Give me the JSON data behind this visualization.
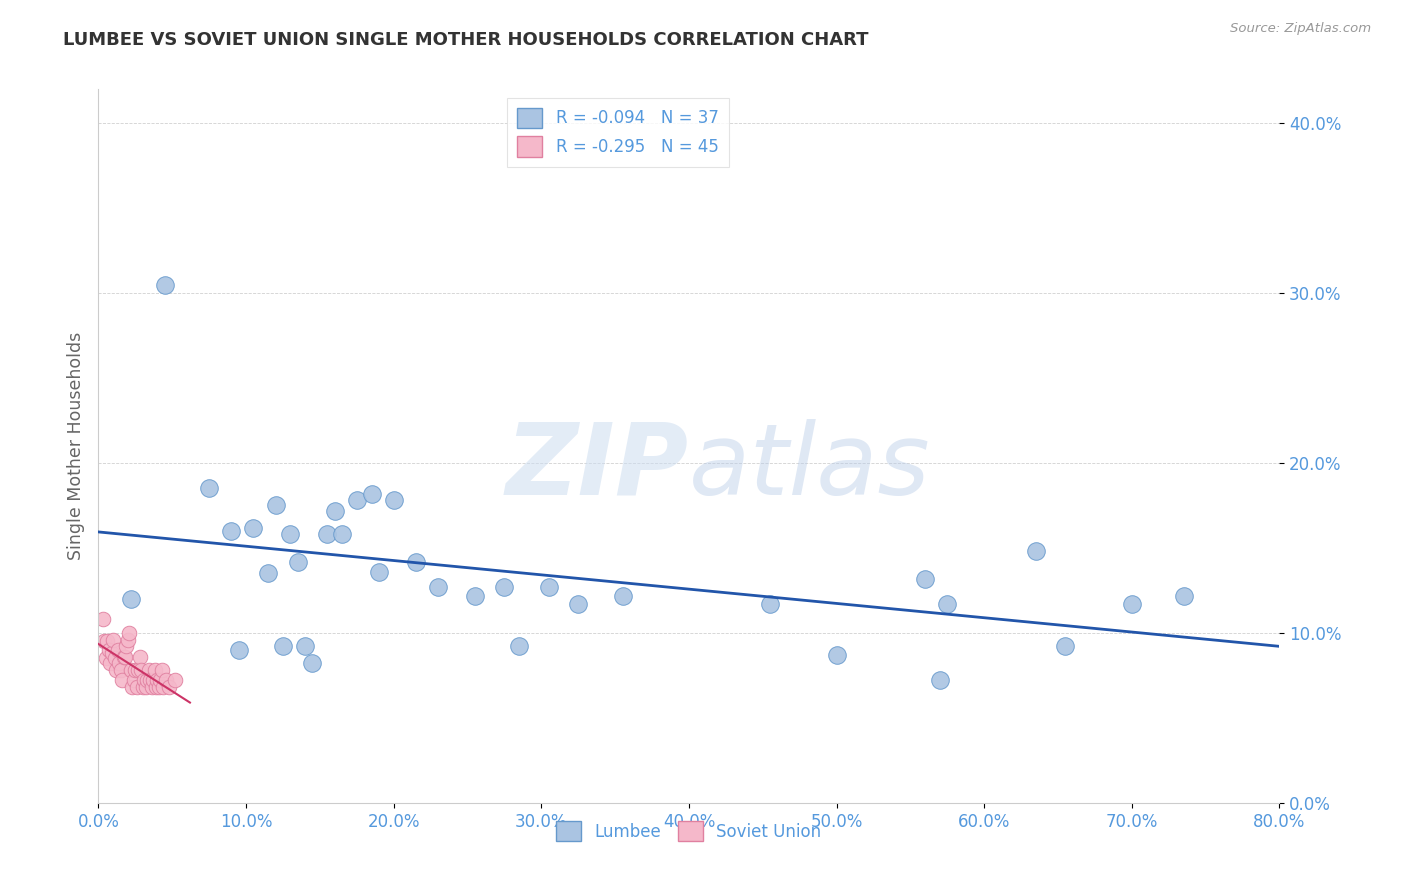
{
  "title": "LUMBEE VS SOVIET UNION SINGLE MOTHER HOUSEHOLDS CORRELATION CHART",
  "source": "Source: ZipAtlas.com",
  "xlim": [
    0.0,
    0.8
  ],
  "ylim": [
    0.0,
    0.42
  ],
  "yticks": [
    0.0,
    0.1,
    0.2,
    0.3,
    0.4
  ],
  "xticks": [
    0.0,
    0.1,
    0.2,
    0.3,
    0.4,
    0.5,
    0.6,
    0.7,
    0.8
  ],
  "lumbee_color": "#aac4e2",
  "soviet_color": "#f5b8ca",
  "lumbee_edge": "#6699cc",
  "soviet_edge": "#e080a0",
  "regression_lumbee_color": "#2255aa",
  "regression_soviet_color": "#cc3366",
  "tick_color": "#5599dd",
  "lumbee_R": -0.094,
  "lumbee_N": 37,
  "soviet_R": -0.295,
  "soviet_N": 45,
  "watermark_zip": "ZIP",
  "watermark_atlas": "atlas",
  "lumbee_x": [
    0.022,
    0.045,
    0.075,
    0.09,
    0.095,
    0.105,
    0.115,
    0.12,
    0.125,
    0.13,
    0.135,
    0.14,
    0.145,
    0.155,
    0.16,
    0.165,
    0.175,
    0.185,
    0.19,
    0.2,
    0.215,
    0.23,
    0.255,
    0.275,
    0.285,
    0.305,
    0.325,
    0.355,
    0.57,
    0.455,
    0.5,
    0.56,
    0.575,
    0.635,
    0.655,
    0.7,
    0.735
  ],
  "lumbee_y": [
    0.12,
    0.305,
    0.185,
    0.16,
    0.09,
    0.162,
    0.135,
    0.175,
    0.092,
    0.158,
    0.142,
    0.092,
    0.082,
    0.158,
    0.172,
    0.158,
    0.178,
    0.182,
    0.136,
    0.178,
    0.142,
    0.127,
    0.122,
    0.127,
    0.092,
    0.127,
    0.117,
    0.122,
    0.072,
    0.117,
    0.087,
    0.132,
    0.117,
    0.148,
    0.092,
    0.117,
    0.122
  ],
  "soviet_x": [
    0.003,
    0.004,
    0.005,
    0.006,
    0.007,
    0.008,
    0.009,
    0.01,
    0.011,
    0.012,
    0.013,
    0.014,
    0.015,
    0.016,
    0.017,
    0.018,
    0.019,
    0.02,
    0.021,
    0.022,
    0.023,
    0.024,
    0.025,
    0.026,
    0.027,
    0.028,
    0.029,
    0.03,
    0.031,
    0.032,
    0.033,
    0.034,
    0.035,
    0.036,
    0.037,
    0.038,
    0.039,
    0.04,
    0.041,
    0.042,
    0.043,
    0.044,
    0.046,
    0.048,
    0.052
  ],
  "soviet_y": [
    0.108,
    0.095,
    0.085,
    0.095,
    0.09,
    0.082,
    0.088,
    0.096,
    0.085,
    0.078,
    0.09,
    0.082,
    0.078,
    0.072,
    0.086,
    0.086,
    0.092,
    0.096,
    0.1,
    0.078,
    0.068,
    0.072,
    0.078,
    0.068,
    0.078,
    0.086,
    0.078,
    0.068,
    0.072,
    0.068,
    0.072,
    0.078,
    0.072,
    0.068,
    0.072,
    0.078,
    0.068,
    0.072,
    0.068,
    0.072,
    0.078,
    0.068,
    0.072,
    0.068,
    0.072
  ]
}
